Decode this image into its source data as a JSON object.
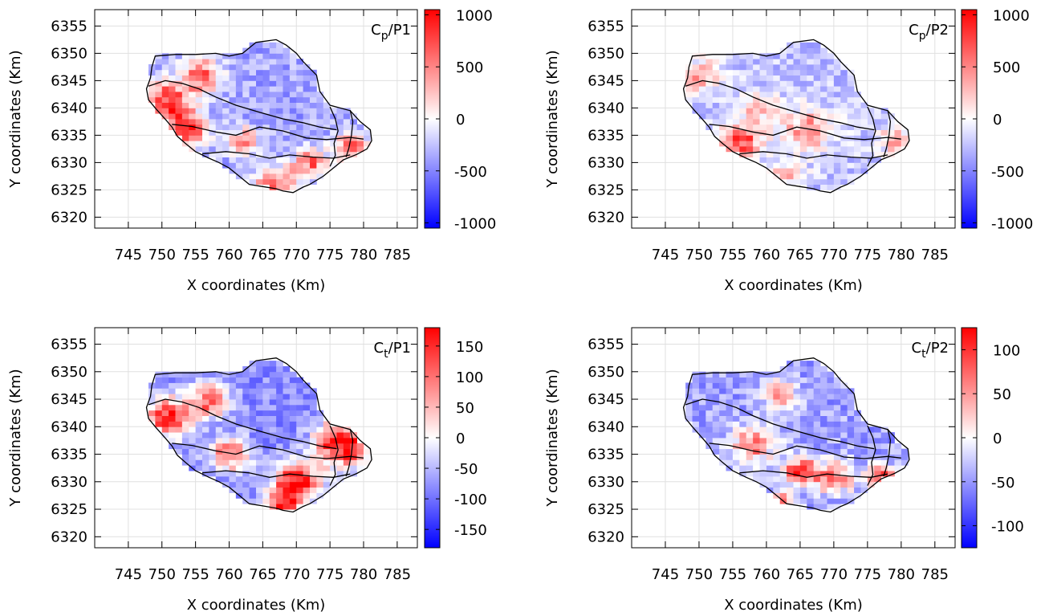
{
  "chart_data": [
    {
      "type": "heatmap",
      "panel_label": {
        "main": "C",
        "sub": "p",
        "rest": "/P1"
      },
      "xlabel": "X coordinates (Km)",
      "ylabel": "Y coordinates (Km)",
      "xlim": [
        740,
        788
      ],
      "ylim": [
        6318,
        6358
      ],
      "xticks": [
        745,
        750,
        755,
        760,
        765,
        770,
        775,
        780,
        785
      ],
      "yticks": [
        6320,
        6325,
        6330,
        6335,
        6340,
        6345,
        6350,
        6355
      ],
      "colorbar": {
        "min": -1050,
        "max": 1050,
        "ticks": [
          -1000,
          -500,
          0,
          500,
          1000
        ]
      },
      "colors": {
        "low": "#0000ff",
        "mid": "#ffffff",
        "high": "#ff0000"
      },
      "field": {
        "base": -360,
        "noise": 220,
        "hotspots": [
          {
            "x": 751,
            "y": 6341,
            "v": 1000,
            "r": 3.5
          },
          {
            "x": 756,
            "y": 6346,
            "v": 700,
            "r": 3
          },
          {
            "x": 754,
            "y": 6336,
            "v": 900,
            "r": 3
          },
          {
            "x": 767,
            "y": 6326,
            "v": 900,
            "r": 3
          },
          {
            "x": 772,
            "y": 6330,
            "v": 650,
            "r": 2.5
          },
          {
            "x": 778,
            "y": 6333,
            "v": 800,
            "r": 2.5
          },
          {
            "x": 762,
            "y": 6334,
            "v": 550,
            "r": 2.5
          }
        ]
      }
    },
    {
      "type": "heatmap",
      "panel_label": {
        "main": "C",
        "sub": "p",
        "rest": "/P2"
      },
      "xlabel": "X coordinates (Km)",
      "ylabel": "Y coordinates (Km)",
      "xlim": [
        740,
        788
      ],
      "ylim": [
        6318,
        6358
      ],
      "xticks": [
        745,
        750,
        755,
        760,
        765,
        770,
        775,
        780,
        785
      ],
      "yticks": [
        6320,
        6325,
        6330,
        6335,
        6340,
        6345,
        6350,
        6355
      ],
      "colorbar": {
        "min": -1050,
        "max": 1050,
        "ticks": [
          -1000,
          -500,
          0,
          500,
          1000
        ]
      },
      "colors": {
        "low": "#0000ff",
        "mid": "#ffffff",
        "high": "#ff0000"
      },
      "field": {
        "base": -250,
        "noise": 200,
        "hotspots": [
          {
            "x": 756,
            "y": 6334,
            "v": 950,
            "r": 3
          },
          {
            "x": 750,
            "y": 6346,
            "v": 500,
            "r": 3
          },
          {
            "x": 766,
            "y": 6336,
            "v": 450,
            "r": 4
          },
          {
            "x": 759,
            "y": 6340,
            "v": 300,
            "r": 3
          },
          {
            "x": 779,
            "y": 6334,
            "v": 400,
            "r": 2.5
          },
          {
            "x": 763,
            "y": 6328,
            "v": 300,
            "r": 2.5
          }
        ]
      }
    },
    {
      "type": "heatmap",
      "panel_label": {
        "main": "C",
        "sub": "t",
        "rest": "/P1"
      },
      "xlabel": "X coordinates (Km)",
      "ylabel": "Y coordinates (Km)",
      "xlim": [
        740,
        788
      ],
      "ylim": [
        6318,
        6358
      ],
      "xticks": [
        745,
        750,
        755,
        760,
        765,
        770,
        775,
        780,
        785
      ],
      "yticks": [
        6320,
        6325,
        6330,
        6335,
        6340,
        6345,
        6350,
        6355
      ],
      "colorbar": {
        "min": -180,
        "max": 180,
        "ticks": [
          -150,
          -100,
          -50,
          0,
          50,
          100,
          150
        ]
      },
      "colors": {
        "low": "#0000ff",
        "mid": "#ffffff",
        "high": "#ff0000"
      },
      "field": {
        "base": -80,
        "noise": 35,
        "hotspots": [
          {
            "x": 751,
            "y": 6342,
            "v": 180,
            "r": 3.5
          },
          {
            "x": 757,
            "y": 6345,
            "v": 120,
            "r": 3
          },
          {
            "x": 760,
            "y": 6335,
            "v": 120,
            "r": 3
          },
          {
            "x": 770,
            "y": 6330,
            "v": 200,
            "r": 3.5
          },
          {
            "x": 777,
            "y": 6337,
            "v": 220,
            "r": 4
          },
          {
            "x": 768,
            "y": 6326,
            "v": 160,
            "r": 2.5
          }
        ]
      }
    },
    {
      "type": "heatmap",
      "panel_label": {
        "main": "C",
        "sub": "t",
        "rest": "/P2"
      },
      "xlabel": "X coordinates (Km)",
      "ylabel": "Y coordinates (Km)",
      "xlim": [
        740,
        788
      ],
      "ylim": [
        6318,
        6358
      ],
      "xticks": [
        745,
        750,
        755,
        760,
        765,
        770,
        775,
        780,
        785
      ],
      "yticks": [
        6320,
        6325,
        6330,
        6335,
        6340,
        6345,
        6350,
        6355
      ],
      "colorbar": {
        "min": -125,
        "max": 125,
        "ticks": [
          -100,
          -50,
          0,
          50,
          100
        ]
      },
      "colors": {
        "low": "#0000ff",
        "mid": "#ffffff",
        "high": "#ff0000"
      },
      "field": {
        "base": -45,
        "noise": 28,
        "hotspots": [
          {
            "x": 758,
            "y": 6337,
            "v": 60,
            "r": 3.5
          },
          {
            "x": 762,
            "y": 6346,
            "v": 55,
            "r": 2.5
          },
          {
            "x": 765,
            "y": 6332,
            "v": 100,
            "r": 2.5
          },
          {
            "x": 770,
            "y": 6331,
            "v": 70,
            "r": 3
          },
          {
            "x": 777,
            "y": 6331,
            "v": 130,
            "r": 2
          },
          {
            "x": 762,
            "y": 6326,
            "v": 90,
            "r": 2
          }
        ]
      }
    }
  ],
  "basin": {
    "outline": [
      [
        749,
        6349.5
      ],
      [
        752,
        6349.8
      ],
      [
        755,
        6349.8
      ],
      [
        758,
        6350
      ],
      [
        760,
        6349.5
      ],
      [
        762,
        6350
      ],
      [
        764,
        6352
      ],
      [
        767,
        6352.5
      ],
      [
        768.5,
        6351.5
      ],
      [
        770,
        6350
      ],
      [
        771,
        6348.5
      ],
      [
        773,
        6346
      ],
      [
        773.5,
        6343
      ],
      [
        775,
        6340.5
      ],
      [
        778,
        6339.5
      ],
      [
        779.5,
        6337.5
      ],
      [
        781,
        6336
      ],
      [
        781.2,
        6334
      ],
      [
        780.5,
        6332.5
      ],
      [
        779,
        6331.5
      ],
      [
        777,
        6330.5
      ],
      [
        775.5,
        6329
      ],
      [
        774,
        6327.5
      ],
      [
        772,
        6326
      ],
      [
        771,
        6325.5
      ],
      [
        769.5,
        6324.5
      ],
      [
        768,
        6324.8
      ],
      [
        767,
        6325.2
      ],
      [
        765,
        6325.6
      ],
      [
        763,
        6326
      ],
      [
        761.5,
        6327.5
      ],
      [
        760,
        6329
      ],
      [
        758.5,
        6330
      ],
      [
        757,
        6330.8
      ],
      [
        755,
        6332
      ],
      [
        753.5,
        6333.5
      ],
      [
        752.3,
        6334.8
      ],
      [
        751.5,
        6336.5
      ],
      [
        750.6,
        6337.8
      ],
      [
        749,
        6340
      ],
      [
        748,
        6341.5
      ],
      [
        747.7,
        6343.5
      ],
      [
        748.3,
        6345.5
      ],
      [
        748.5,
        6347.5
      ],
      [
        749,
        6349.5
      ]
    ],
    "divides": [
      [
        [
          748,
          6344
        ],
        [
          750.5,
          6345
        ],
        [
          753,
          6344.5
        ],
        [
          755.5,
          6343.5
        ],
        [
          758,
          6342
        ],
        [
          761,
          6340.5
        ],
        [
          764.5,
          6339.2
        ],
        [
          768,
          6338
        ],
        [
          771,
          6337.3
        ],
        [
          773.5,
          6336.5
        ],
        [
          776,
          6336
        ]
      ],
      [
        [
          751.5,
          6337
        ],
        [
          754.5,
          6336.6
        ],
        [
          758,
          6335.6
        ],
        [
          761,
          6335
        ],
        [
          764.5,
          6336.5
        ],
        [
          768,
          6335.8
        ],
        [
          771.5,
          6334.5
        ],
        [
          774.5,
          6334.2
        ],
        [
          778,
          6334.6
        ],
        [
          780,
          6334.3
        ]
      ],
      [
        [
          756,
          6331.6
        ],
        [
          759.5,
          6332
        ],
        [
          763,
          6331.6
        ],
        [
          766,
          6330.8
        ],
        [
          769,
          6331.4
        ],
        [
          772.5,
          6331
        ],
        [
          775.5,
          6330.8
        ],
        [
          778,
          6331.4
        ]
      ],
      [
        [
          775,
          6340.2
        ],
        [
          775.8,
          6338
        ],
        [
          776.2,
          6335.8
        ],
        [
          775.6,
          6333.5
        ],
        [
          775.8,
          6331.3
        ],
        [
          775,
          6329.3
        ]
      ],
      [
        [
          778,
          6339.6
        ],
        [
          778.4,
          6337.5
        ],
        [
          778.2,
          6335
        ],
        [
          777.8,
          6332.6
        ],
        [
          777.4,
          6331
        ]
      ]
    ]
  }
}
